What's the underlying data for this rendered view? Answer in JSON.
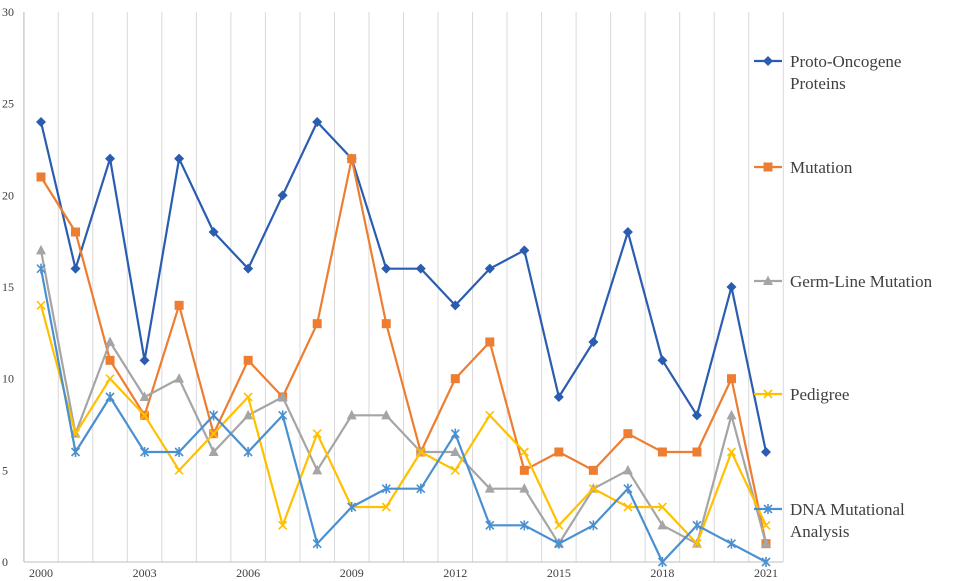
{
  "chart_data": {
    "type": "line",
    "title": "",
    "xlabel": "",
    "ylabel": "",
    "x": [
      2000,
      2001,
      2002,
      2003,
      2004,
      2005,
      2006,
      2007,
      2008,
      2009,
      2010,
      2011,
      2012,
      2013,
      2014,
      2015,
      2016,
      2017,
      2018,
      2019,
      2020,
      2021
    ],
    "x_tick_labels": [
      "2000",
      "2003",
      "2006",
      "2009",
      "2012",
      "2015",
      "2018",
      "2021"
    ],
    "x_tick_values": [
      2000,
      2003,
      2006,
      2009,
      2012,
      2015,
      2018,
      2021
    ],
    "ylim": [
      0,
      30
    ],
    "y_ticks": [
      0,
      5,
      10,
      15,
      20,
      25,
      30
    ],
    "grid": "vertical",
    "legend_position": "right",
    "series": [
      {
        "name": "Proto-Oncogene Proteins",
        "name_lines": [
          "Proto-Oncogene",
          "Proteins"
        ],
        "color": "#2a5db0",
        "marker": "diamond",
        "values": [
          24,
          16,
          22,
          11,
          22,
          18,
          16,
          20,
          24,
          22,
          16,
          16,
          14,
          16,
          17,
          9,
          12,
          18,
          11,
          8,
          15,
          6
        ]
      },
      {
        "name": "Mutation",
        "name_lines": [
          "Mutation"
        ],
        "color": "#ed7d31",
        "marker": "square",
        "values": [
          21,
          18,
          11,
          8,
          14,
          7,
          11,
          9,
          13,
          22,
          13,
          6,
          10,
          12,
          5,
          6,
          5,
          7,
          6,
          6,
          10,
          1
        ]
      },
      {
        "name": "Germ-Line Mutation",
        "name_lines": [
          "Germ-Line Mutation"
        ],
        "color": "#a5a5a5",
        "marker": "triangle",
        "values": [
          17,
          7,
          12,
          9,
          10,
          6,
          8,
          9,
          5,
          8,
          8,
          6,
          6,
          4,
          4,
          1,
          4,
          5,
          2,
          1,
          8,
          1
        ]
      },
      {
        "name": "Pedigree",
        "name_lines": [
          "Pedigree"
        ],
        "color": "#ffc000",
        "marker": "x",
        "values": [
          14,
          7,
          10,
          8,
          5,
          7,
          9,
          2,
          7,
          3,
          3,
          6,
          5,
          8,
          6,
          2,
          4,
          3,
          3,
          1,
          6,
          2
        ]
      },
      {
        "name": "DNA Mutational Analysis",
        "name_lines": [
          "DNA Mutational",
          "Analysis"
        ],
        "color": "#4a90d0",
        "marker": "star",
        "values": [
          16,
          6,
          9,
          6,
          6,
          8,
          6,
          8,
          1,
          3,
          4,
          4,
          7,
          2,
          2,
          1,
          2,
          4,
          0,
          2,
          1,
          0
        ]
      }
    ]
  }
}
